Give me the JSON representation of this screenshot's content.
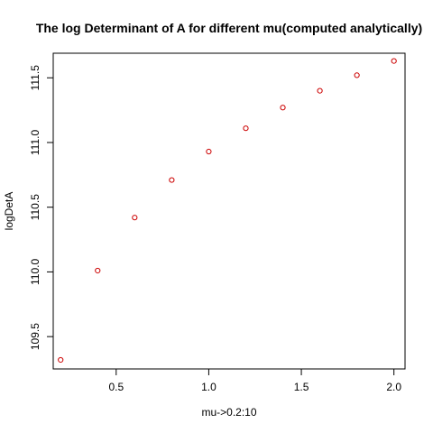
{
  "chart_data": {
    "type": "scatter",
    "title": "The log Determinant of A for different mu(computed analytically)",
    "xlabel": "mu->0.2:10",
    "ylabel": "logDetA",
    "x": [
      0.2,
      0.4,
      0.6,
      0.8,
      1.0,
      1.2,
      1.4,
      1.6,
      1.8,
      2.0
    ],
    "y": [
      109.32,
      110.01,
      110.42,
      110.71,
      110.93,
      111.11,
      111.27,
      111.4,
      111.52,
      111.63
    ],
    "xlim": [
      0.16,
      2.06
    ],
    "ylim": [
      109.25,
      111.69
    ],
    "xticks": [
      0.5,
      1.0,
      1.5,
      2.0
    ],
    "xtick_labels": [
      "0.5",
      "1.0",
      "1.5",
      "2.0"
    ],
    "yticks": [
      109.5,
      110.0,
      110.5,
      111.0,
      111.5
    ],
    "ytick_labels": [
      "109.5",
      "110.0",
      "110.5",
      "111.0",
      "111.5"
    ],
    "grid": false,
    "point_color": "#cc0000"
  }
}
